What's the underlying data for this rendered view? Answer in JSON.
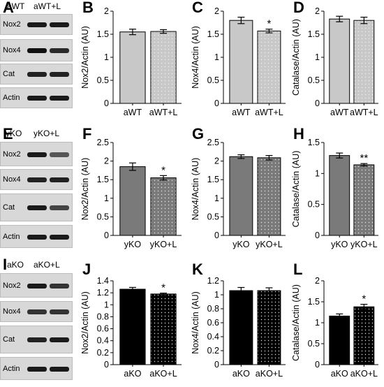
{
  "panel_letters": {
    "A": "A",
    "B": "B",
    "C": "C",
    "D": "D",
    "E": "E",
    "F": "F",
    "G": "G",
    "H": "H",
    "I": "I",
    "J": "J",
    "K": "K",
    "L": "L"
  },
  "blots": [
    {
      "headers": [
        "aWT",
        "aWT+L"
      ],
      "rows": [
        {
          "label": "Nox2",
          "band1": "#1a1a1a",
          "band2": "#1a1a1a"
        },
        {
          "label": "Nox4",
          "band1": "#111111",
          "band2": "#2a2a2a"
        },
        {
          "label": "Cat",
          "band1": "#222222",
          "band2": "#222222"
        },
        {
          "label": "Actin",
          "band1": "#1a1a1a",
          "band2": "#1a1a1a"
        }
      ]
    },
    {
      "headers": [
        "yKO",
        "yKO+L"
      ],
      "rows": [
        {
          "label": "Nox2",
          "band1": "#1a1a1a",
          "band2": "#555555"
        },
        {
          "label": "Nox4",
          "band1": "#222222",
          "band2": "#222222"
        },
        {
          "label": "Cat",
          "band1": "#1a1a1a",
          "band2": "#444444"
        },
        {
          "label": "Actin",
          "band1": "#1a1a1a",
          "band2": "#1a1a1a"
        }
      ]
    },
    {
      "headers": [
        "aKO",
        "aKO+L"
      ],
      "rows": [
        {
          "label": "Nox2",
          "band1": "#1a1a1a",
          "band2": "#333333"
        },
        {
          "label": "Nox4",
          "band1": "#333333",
          "band2": "#333333"
        },
        {
          "label": "Cat",
          "band1": "#222222",
          "band2": "#1a1a1a"
        },
        {
          "label": "Actin",
          "band1": "#1a1a1a",
          "band2": "#1a1a1a"
        }
      ]
    }
  ],
  "chart_data": [
    {
      "panel": "B",
      "type": "bar",
      "ylabel": "Nox2/Actin (AU)",
      "ylim": [
        0,
        2
      ],
      "yticks": [
        "0",
        "0.5",
        "1",
        "1.5",
        "2"
      ],
      "categories": [
        "aWT",
        "aWT+L"
      ],
      "values": [
        1.55,
        1.56
      ],
      "errors": [
        0.06,
        0.04
      ],
      "sig": [
        "",
        ""
      ],
      "colors": [
        "#c8c8c8",
        "#c8c8c8"
      ],
      "dotted": [
        false,
        true
      ]
    },
    {
      "panel": "C",
      "type": "bar",
      "ylabel": "Nox4/Actin (AU)",
      "ylim": [
        0,
        2
      ],
      "yticks": [
        "0",
        "0.5",
        "1",
        "1.5",
        "2"
      ],
      "categories": [
        "aWT",
        "aWT+L"
      ],
      "values": [
        1.8,
        1.57
      ],
      "errors": [
        0.07,
        0.04
      ],
      "sig": [
        "",
        "*"
      ],
      "colors": [
        "#c8c8c8",
        "#c8c8c8"
      ],
      "dotted": [
        false,
        true
      ]
    },
    {
      "panel": "D",
      "type": "bar",
      "ylabel": "Catalase/Actin (AU)",
      "ylim": [
        0,
        2
      ],
      "yticks": [
        "0",
        "0.5",
        "1",
        "1.5",
        "2"
      ],
      "categories": [
        "aWT",
        "aWT+L"
      ],
      "values": [
        1.83,
        1.8
      ],
      "errors": [
        0.06,
        0.07
      ],
      "sig": [
        "",
        ""
      ],
      "colors": [
        "#c8c8c8",
        "#c8c8c8"
      ],
      "dotted": [
        false,
        true
      ]
    },
    {
      "panel": "F",
      "type": "bar",
      "ylabel": "Nox2/Actin (AU)",
      "ylim": [
        0,
        2.5
      ],
      "yticks": [
        "0",
        "0.5",
        "1",
        "1.5",
        "2",
        "2.5"
      ],
      "categories": [
        "yKO",
        "yKO+L"
      ],
      "values": [
        1.85,
        1.55
      ],
      "errors": [
        0.1,
        0.06
      ],
      "sig": [
        "",
        "*"
      ],
      "colors": [
        "#7a7a7a",
        "#7a7a7a"
      ],
      "dotted": [
        false,
        true
      ]
    },
    {
      "panel": "G",
      "type": "bar",
      "ylabel": "Nox4/Actin (AU)",
      "ylim": [
        0,
        2.5
      ],
      "yticks": [
        "0",
        "0.5",
        "1",
        "1.5",
        "2",
        "2.5"
      ],
      "categories": [
        "yKO",
        "yKO+L"
      ],
      "values": [
        2.12,
        2.09
      ],
      "errors": [
        0.05,
        0.06
      ],
      "sig": [
        "",
        ""
      ],
      "colors": [
        "#7a7a7a",
        "#7a7a7a"
      ],
      "dotted": [
        false,
        true
      ]
    },
    {
      "panel": "H",
      "type": "bar",
      "ylabel": "Catalase/Actin (AU)",
      "ylim": [
        0,
        1.5
      ],
      "yticks": [
        "0",
        "0.5",
        "1",
        "1.5"
      ],
      "categories": [
        "yKO",
        "yKO+L"
      ],
      "values": [
        1.29,
        1.14
      ],
      "errors": [
        0.04,
        0.02
      ],
      "sig": [
        "",
        "**"
      ],
      "colors": [
        "#7a7a7a",
        "#7a7a7a"
      ],
      "dotted": [
        false,
        true
      ]
    },
    {
      "panel": "J",
      "type": "bar",
      "ylabel": "Nox2/Actin (AU)",
      "ylim": [
        0,
        1.4
      ],
      "yticks": [
        "0",
        "0.2",
        "0.4",
        "0.6",
        "0.8",
        "1",
        "1.2",
        "1.4"
      ],
      "categories": [
        "aKO",
        "aKO+L"
      ],
      "values": [
        1.26,
        1.18
      ],
      "errors": [
        0.03,
        0.015
      ],
      "sig": [
        "",
        "*"
      ],
      "colors": [
        "#000000",
        "#000000"
      ],
      "dotted": [
        false,
        true
      ]
    },
    {
      "panel": "K",
      "type": "bar",
      "ylabel": "Nox4/Actin (AU)",
      "ylim": [
        0,
        1.2
      ],
      "yticks": [
        "0",
        "0.2",
        "0.4",
        "0.6",
        "0.8",
        "1",
        "1.2"
      ],
      "categories": [
        "aKO",
        "aKO+L"
      ],
      "values": [
        1.06,
        1.06
      ],
      "errors": [
        0.045,
        0.04
      ],
      "sig": [
        "",
        ""
      ],
      "colors": [
        "#000000",
        "#000000"
      ],
      "dotted": [
        false,
        true
      ]
    },
    {
      "panel": "L",
      "type": "bar",
      "ylabel": "Catalase/Actin (AU)",
      "ylim": [
        0,
        2
      ],
      "yticks": [
        "0",
        "0.5",
        "1",
        "1.5",
        "2"
      ],
      "categories": [
        "aKO",
        "aKO+L"
      ],
      "values": [
        1.16,
        1.38
      ],
      "errors": [
        0.05,
        0.06
      ],
      "sig": [
        "",
        "*"
      ],
      "colors": [
        "#000000",
        "#000000"
      ],
      "dotted": [
        false,
        true
      ]
    }
  ]
}
